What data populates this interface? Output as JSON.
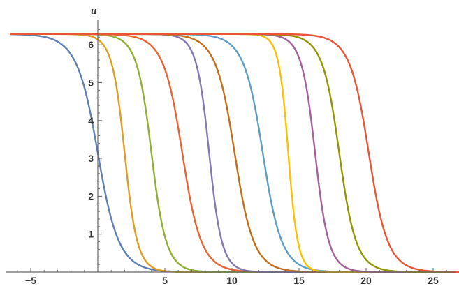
{
  "chart_data": {
    "type": "line",
    "title": "",
    "xlabel": "",
    "ylabel": "u",
    "xlim": [
      -6.5,
      27
    ],
    "ylim": [
      0,
      6.6
    ],
    "x_ticks": [
      -5,
      5,
      10,
      15,
      20,
      25
    ],
    "x_tick_labels": [
      "−5",
      "5",
      "10",
      "15",
      "20",
      "25"
    ],
    "y_ticks": [
      1,
      2,
      3,
      4,
      5,
      6
    ],
    "y_tick_labels": [
      "1",
      "2",
      "3",
      "4",
      "5",
      "6"
    ],
    "grid": false,
    "legend": "none",
    "series": [
      {
        "color": "#5e81b5",
        "center": 0,
        "width": 1.0
      },
      {
        "color": "#e19c24",
        "center": 2.0,
        "width": 0.6
      },
      {
        "color": "#8fb032",
        "center": 4.0,
        "width": 0.7
      },
      {
        "color": "#eb6235",
        "center": 6.3,
        "width": 0.9
      },
      {
        "color": "#8778b3",
        "center": 8.3,
        "width": 0.6
      },
      {
        "color": "#c56e1a",
        "center": 10.2,
        "width": 0.9
      },
      {
        "color": "#5d9ec7",
        "center": 12.3,
        "width": 0.9
      },
      {
        "color": "#ffbf00",
        "center": 14.2,
        "width": 0.45
      },
      {
        "color": "#a5609d",
        "center": 16.2,
        "width": 0.65
      },
      {
        "color": "#929600",
        "center": 18.0,
        "width": 0.8
      },
      {
        "color": "#e95536",
        "center": 20.2,
        "width": 0.9
      }
    ]
  }
}
